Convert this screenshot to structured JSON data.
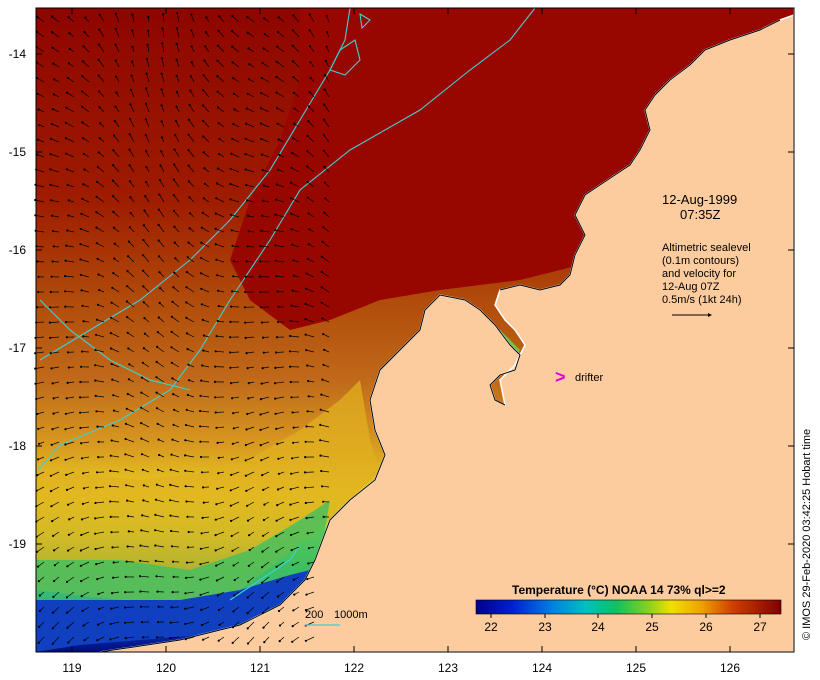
{
  "map": {
    "lon_ticks": [
      "119",
      "120",
      "121",
      "122",
      "123",
      "124",
      "125",
      "126"
    ],
    "lat_ticks": [
      "-14",
      "-15",
      "-16",
      "-17",
      "-18",
      "-19"
    ],
    "date": "12-Aug-1999",
    "time": "07:35Z",
    "legend_lines": [
      "Altimetric sealevel",
      "(0.1m contours)",
      "and velocity for",
      "12-Aug 07Z",
      "0.5m/s (1kt 24h)"
    ],
    "drifter_symbol": ">",
    "drifter_label": "drifter",
    "depth_labels": [
      "200",
      "1000m"
    ],
    "colorbar": {
      "title": "Temperature (°C) NOAA 14 73% ql>=2",
      "ticks": [
        "22",
        "23",
        "24",
        "25",
        "26",
        "27"
      ]
    },
    "credit": "© IMOS 29-Feb-2020 03:42:25 Hobart time",
    "colors": {
      "land": "#fccc9e",
      "warm": "#9b0a00",
      "drifter": "#e000e0",
      "contour": "#40d0d0"
    }
  }
}
